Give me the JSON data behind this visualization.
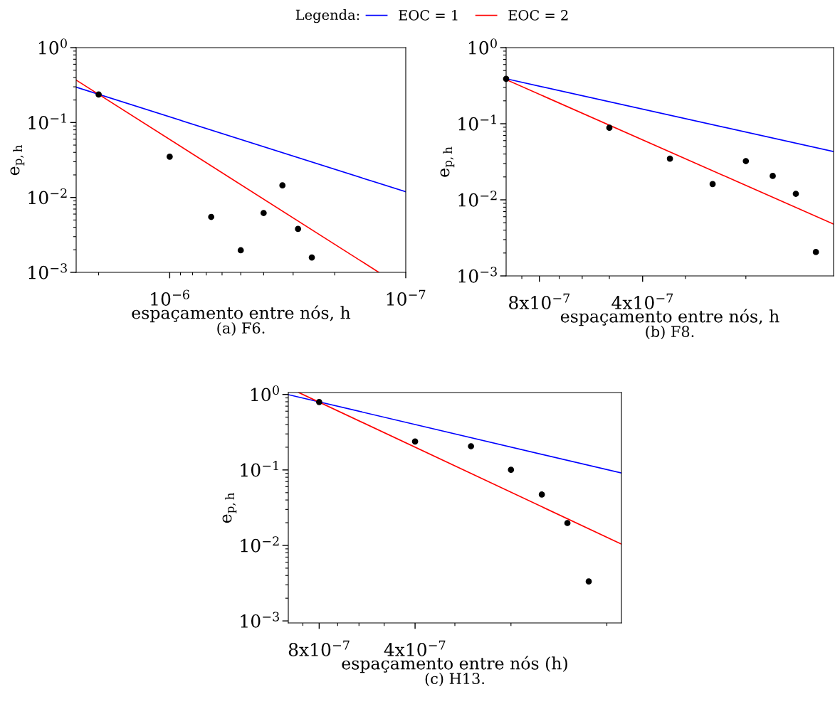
{
  "chart_data": [
    {
      "type": "scatter",
      "legend_title": "Legenda:",
      "legend": "top",
      "log": "xy",
      "xlabel": "espaçamento entre nós, h",
      "ylabel": "e$_{p,h}$",
      "annotations": [
        "(a) F6."
      ],
      "xlim": [
        2.49e-06,
        1e-07
      ],
      "ylim": [
        0.001,
        1
      ],
      "xticks": [
        {
          "value": 1e-06,
          "label": "10$^{−6}$"
        },
        {
          "value": 1e-07,
          "label": "10$^{−7}$"
        },
        {
          "value": 2e-06,
          "label": null
        },
        {
          "value": 9e-07,
          "label": null
        },
        {
          "value": 8e-07,
          "label": null
        },
        {
          "value": 7e-07,
          "label": null
        },
        {
          "value": 6e-07,
          "label": null
        },
        {
          "value": 5e-07,
          "label": null
        },
        {
          "value": 4e-07,
          "label": null
        },
        {
          "value": 3e-07,
          "label": null
        },
        {
          "value": 2e-07,
          "label": null
        }
      ],
      "yticks": [
        {
          "value": 0.001,
          "label": "10$^{−3}$"
        },
        {
          "value": 0.01,
          "label": "10$^{−2}$"
        },
        {
          "value": 0.1,
          "label": "10$^{−1}$"
        },
        {
          "value": 1,
          "label": "10$^{0}$"
        }
      ],
      "series": [
        {
          "name": "EOC = 1",
          "type": "line",
          "color": "#0000ff",
          "x": [
            2.49e-06,
            1e-07
          ],
          "values": [
            0.297,
            0.0119
          ]
        },
        {
          "name": "EOC = 2",
          "type": "line",
          "color": "#ff0000",
          "x": [
            2.49e-06,
            1.3e-07
          ],
          "values": [
            0.369,
            0.001
          ]
        },
        {
          "color": "#000000",
          "marker": "circle",
          "x": [
            2e-06,
            1e-06,
            6.67e-07,
            5e-07,
            4e-07,
            3.33e-07,
            2.86e-07,
            2.5e-07
          ],
          "values": [
            0.237,
            0.035,
            0.0055,
            0.00197,
            0.0062,
            0.0145,
            0.0038,
            0.00158
          ]
        }
      ]
    },
    {
      "type": "scatter",
      "log": "xy",
      "xlabel": "espaçamento entre nós, h",
      "ylabel": "e$_{p,h}$",
      "annotations": [
        "(b) F8."
      ],
      "xlim": [
        1e-06,
        1.11e-07
      ],
      "ylim": [
        0.001,
        1
      ],
      "xticks": [
        {
          "value": 8e-07,
          "label": "8x10$^{−7}$"
        },
        {
          "value": 4e-07,
          "label": "4x10$^{−7}$"
        },
        {
          "value": 9e-07,
          "label": null
        },
        {
          "value": 7e-07,
          "label": null
        },
        {
          "value": 6e-07,
          "label": null
        },
        {
          "value": 5e-07,
          "label": null
        },
        {
          "value": 3e-07,
          "label": null
        },
        {
          "value": 2e-07,
          "label": null
        }
      ],
      "yticks": [
        {
          "value": 0.001,
          "label": "10$^{−3}$"
        },
        {
          "value": 0.01,
          "label": "10$^{−2}$"
        },
        {
          "value": 0.1,
          "label": "10$^{−1}$"
        },
        {
          "value": 1,
          "label": "10$^{0}$"
        }
      ],
      "series": [
        {
          "type": "line",
          "color": "#0000ff",
          "x": [
            1e-06,
            1.11e-07
          ],
          "values": [
            0.39,
            0.043
          ]
        },
        {
          "type": "line",
          "color": "#ff0000",
          "x": [
            1e-06,
            1.11e-07
          ],
          "values": [
            0.38,
            0.0048
          ]
        },
        {
          "color": "#000000",
          "marker": "circle",
          "x": [
            1e-06,
            5e-07,
            3.33e-07,
            2.5e-07,
            2e-07,
            1.67e-07,
            1.43e-07,
            1.25e-07
          ],
          "values": [
            0.389,
            0.0885,
            0.0347,
            0.0161,
            0.0323,
            0.0206,
            0.012,
            0.00206
          ]
        }
      ]
    },
    {
      "type": "scatter",
      "log": "xy",
      "xlabel": "espaçamento entre nós (h)",
      "ylabel": "e$_{p,h}$",
      "annotations": [
        "(c) H13."
      ],
      "xlim": [
        1e-06,
        9e-08
      ],
      "ylim": [
        0.00094,
        1.06
      ],
      "xticks": [
        {
          "value": 8e-07,
          "label": "8x10$^{−7}$"
        },
        {
          "value": 4e-07,
          "label": "4x10$^{−7}$"
        },
        {
          "value": 9e-07,
          "label": null
        },
        {
          "value": 7e-07,
          "label": null
        },
        {
          "value": 6e-07,
          "label": null
        },
        {
          "value": 5e-07,
          "label": null
        },
        {
          "value": 3e-07,
          "label": null
        },
        {
          "value": 2e-07,
          "label": null
        },
        {
          "value": 1e-07,
          "label": null
        }
      ],
      "yticks": [
        {
          "value": 0.001,
          "label": "10$^{−3}$"
        },
        {
          "value": 0.01,
          "label": "10$^{−2}$"
        },
        {
          "value": 0.1,
          "label": "10$^{−1}$"
        },
        {
          "value": 1,
          "label": "10$^{0}$"
        }
      ],
      "series": [
        {
          "type": "line",
          "color": "#0000ff",
          "x": [
            1e-06,
            9e-08
          ],
          "values": [
            0.993,
            0.091
          ]
        },
        {
          "type": "line",
          "color": "#ff0000",
          "x": [
            9.27e-07,
            9e-08
          ],
          "values": [
            1.06,
            0.0104
          ]
        },
        {
          "color": "#000000",
          "marker": "circle",
          "x": [
            8e-07,
            4e-07,
            2.67e-07,
            2e-07,
            1.6e-07,
            1.33e-07,
            1.14e-07
          ],
          "values": [
            0.794,
            0.238,
            0.206,
            0.1005,
            0.0472,
            0.0198,
            0.00333
          ]
        }
      ]
    }
  ]
}
